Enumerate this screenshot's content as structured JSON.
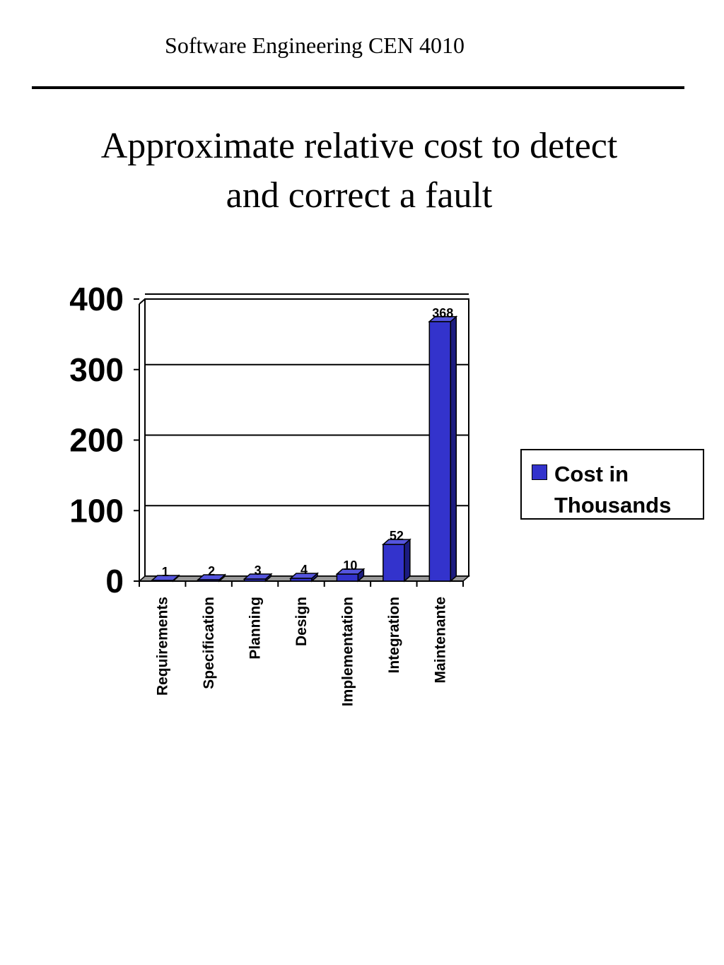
{
  "header": "Software Engineering CEN 4010",
  "chart_data": {
    "type": "bar",
    "title": "Approximate relative cost to detect and correct a fault",
    "categories": [
      "Requirements",
      "Specification",
      "Planning",
      "Design",
      "Implementation",
      "Integration",
      "Maintenante"
    ],
    "series": [
      {
        "name": "Cost in Thousands",
        "color": "#3333cc",
        "values": [
          1,
          2,
          3,
          4,
          10,
          52,
          368
        ]
      }
    ],
    "ylim": [
      0,
      400
    ],
    "yticks": [
      0,
      100,
      200,
      300,
      400
    ],
    "grid": true,
    "legend": "right"
  }
}
